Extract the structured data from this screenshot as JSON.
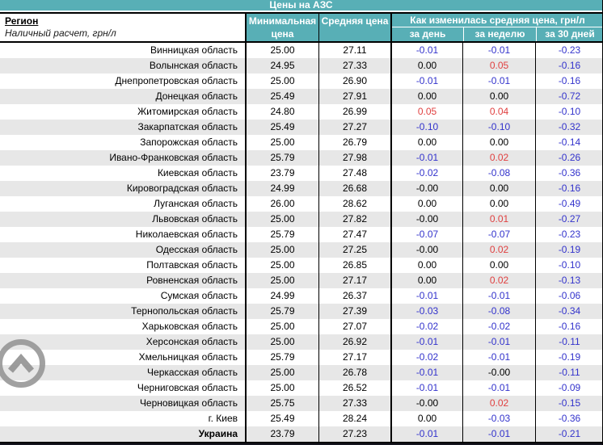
{
  "title": "Цены на АЗС",
  "header": {
    "region_label": "Регион",
    "region_subtitle": "Наличный расчет, грн/л",
    "col_min": "Минимальная цена",
    "col_avg": "Средняя цена",
    "group_label": "Как изменилась средняя цена, грн/л",
    "sub_day": "за день",
    "sub_week": "за неделю",
    "sub_month": "за 30 дней"
  },
  "colors": {
    "accent_teal": "#58afb6",
    "row_alt": "#e7e7e7",
    "negative": "#3333cc",
    "positive": "#e04040",
    "neutral": "#000000",
    "icon_gray": "#919191"
  },
  "icons": {
    "scroll_to_top": "chevron-up-circle"
  },
  "chart_data": {
    "type": "table",
    "title": "Цены на АЗС",
    "columns": [
      "Регион",
      "Минимальная цена",
      "Средняя цена",
      "за день",
      "за неделю",
      "за 30 дней"
    ],
    "rows_note": "see table.rows"
  },
  "table": {
    "rows": [
      {
        "region": "Винницкая область",
        "min": "25.00",
        "avg": "27.11",
        "day": "-0.01",
        "week": "-0.01",
        "month": "-0.23"
      },
      {
        "region": "Волынская область",
        "min": "24.95",
        "avg": "27.33",
        "day": "0.00",
        "week": "0.05",
        "month": "-0.16"
      },
      {
        "region": "Днепропетровская область",
        "min": "25.00",
        "avg": "26.90",
        "day": "-0.01",
        "week": "-0.01",
        "month": "-0.16"
      },
      {
        "region": "Донецкая область",
        "min": "25.49",
        "avg": "27.91",
        "day": "0.00",
        "week": "0.00",
        "month": "-0.72"
      },
      {
        "region": "Житомирская область",
        "min": "24.80",
        "avg": "26.99",
        "day": "0.05",
        "week": "0.04",
        "month": "-0.10"
      },
      {
        "region": "Закарпатская область",
        "min": "25.49",
        "avg": "27.27",
        "day": "-0.10",
        "week": "-0.10",
        "month": "-0.32"
      },
      {
        "region": "Запорожская область",
        "min": "25.00",
        "avg": "26.79",
        "day": "0.00",
        "week": "0.00",
        "month": "-0.14"
      },
      {
        "region": "Ивано-Франковская область",
        "min": "25.79",
        "avg": "27.98",
        "day": "-0.01",
        "week": "0.02",
        "month": "-0.26"
      },
      {
        "region": "Киевская область",
        "min": "23.79",
        "avg": "27.48",
        "day": "-0.02",
        "week": "-0.08",
        "month": "-0.36"
      },
      {
        "region": "Кировоградская область",
        "min": "24.99",
        "avg": "26.68",
        "day": "-0.00",
        "week": "0.00",
        "month": "-0.16"
      },
      {
        "region": "Луганская область",
        "min": "26.00",
        "avg": "28.62",
        "day": "0.00",
        "week": "0.00",
        "month": "-0.49"
      },
      {
        "region": "Львовская область",
        "min": "25.00",
        "avg": "27.82",
        "day": "-0.00",
        "week": "0.01",
        "month": "-0.27"
      },
      {
        "region": "Николаевская область",
        "min": "25.79",
        "avg": "27.47",
        "day": "-0.07",
        "week": "-0.07",
        "month": "-0.23"
      },
      {
        "region": "Одесская область",
        "min": "25.00",
        "avg": "27.25",
        "day": "-0.00",
        "week": "0.02",
        "month": "-0.19"
      },
      {
        "region": "Полтавская область",
        "min": "25.00",
        "avg": "26.85",
        "day": "0.00",
        "week": "0.00",
        "month": "-0.10"
      },
      {
        "region": "Ровненская область",
        "min": "25.00",
        "avg": "27.17",
        "day": "0.00",
        "week": "0.02",
        "month": "-0.13"
      },
      {
        "region": "Сумская область",
        "min": "24.99",
        "avg": "26.37",
        "day": "-0.01",
        "week": "-0.01",
        "month": "-0.06"
      },
      {
        "region": "Тернопольская область",
        "min": "25.79",
        "avg": "27.39",
        "day": "-0.03",
        "week": "-0.08",
        "month": "-0.34"
      },
      {
        "region": "Харьковская область",
        "min": "25.00",
        "avg": "27.07",
        "day": "-0.02",
        "week": "-0.02",
        "month": "-0.16"
      },
      {
        "region": "Херсонская область",
        "min": "25.00",
        "avg": "26.92",
        "day": "-0.01",
        "week": "-0.01",
        "month": "-0.11"
      },
      {
        "region": "Хмельницкая область",
        "min": "25.79",
        "avg": "27.17",
        "day": "-0.02",
        "week": "-0.01",
        "month": "-0.19"
      },
      {
        "region": "Черкасская область",
        "min": "25.00",
        "avg": "26.78",
        "day": "-0.01",
        "week": "-0.00",
        "month": "-0.11"
      },
      {
        "region": "Черниговская область",
        "min": "25.00",
        "avg": "26.52",
        "day": "-0.01",
        "week": "-0.01",
        "month": "-0.09"
      },
      {
        "region": "Черновицкая область",
        "min": "25.75",
        "avg": "27.33",
        "day": "-0.00",
        "week": "0.02",
        "month": "-0.15"
      },
      {
        "region": "г. Киев",
        "min": "25.49",
        "avg": "28.24",
        "day": "0.00",
        "week": "-0.03",
        "month": "-0.36"
      },
      {
        "region": "Украина",
        "min": "23.79",
        "avg": "27.23",
        "day": "-0.01",
        "week": "-0.01",
        "month": "-0.21",
        "bold": true
      }
    ]
  }
}
